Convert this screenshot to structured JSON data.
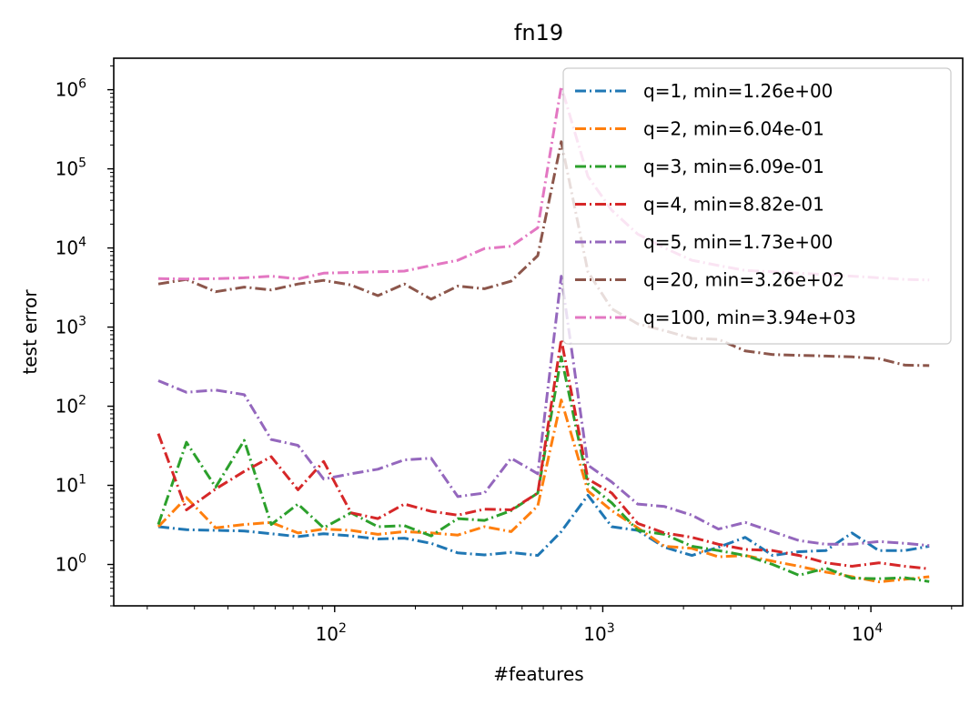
{
  "chart_data": {
    "type": "line",
    "title": "fn19",
    "xlabel": "#features",
    "ylabel": "test error",
    "xscale": "log",
    "yscale": "log",
    "xlim": [
      15,
      22000
    ],
    "ylim": [
      0.3,
      2500000
    ],
    "x_ticks": [
      {
        "value": 100,
        "base": "10",
        "exp": "2"
      },
      {
        "value": 1000,
        "base": "10",
        "exp": "3"
      },
      {
        "value": 10000,
        "base": "10",
        "exp": "4"
      }
    ],
    "y_ticks": [
      {
        "value": 1,
        "base": "10",
        "exp": "0"
      },
      {
        "value": 10,
        "base": "10",
        "exp": "1"
      },
      {
        "value": 100,
        "base": "10",
        "exp": "2"
      },
      {
        "value": 1000,
        "base": "10",
        "exp": "3"
      },
      {
        "value": 10000,
        "base": "10",
        "exp": "4"
      },
      {
        "value": 100000,
        "base": "10",
        "exp": "5"
      },
      {
        "value": 1000000,
        "base": "10",
        "exp": "6"
      }
    ],
    "grid": false,
    "legend_position": "top-right",
    "line_style": "dash-dot",
    "x": [
      22,
      28,
      36,
      46,
      58,
      73,
      91,
      115,
      145,
      182,
      229,
      288,
      362,
      455,
      572,
      700,
      880,
      1080,
      1350,
      1700,
      2150,
      2700,
      3400,
      4300,
      5400,
      6800,
      8500,
      10700,
      13400,
      16500
    ],
    "series": [
      {
        "name": "q=1, min=1.26e+00",
        "color": "#1f77b4",
        "values": [
          3.0,
          2.75,
          2.7,
          2.65,
          2.45,
          2.25,
          2.45,
          2.3,
          2.1,
          2.15,
          1.85,
          1.4,
          1.32,
          1.42,
          1.3,
          2.6,
          7.5,
          3.0,
          2.7,
          1.65,
          1.3,
          1.65,
          2.2,
          1.3,
          1.45,
          1.5,
          2.5,
          1.5,
          1.5,
          1.7
        ]
      },
      {
        "name": "q=2, min=6.04e-01",
        "color": "#ff7f0e",
        "values": [
          3.0,
          7.0,
          2.9,
          3.2,
          3.4,
          2.5,
          2.8,
          2.7,
          2.4,
          2.6,
          2.5,
          2.35,
          3.0,
          2.6,
          5.5,
          120,
          8.5,
          4.8,
          2.9,
          1.7,
          1.6,
          1.25,
          1.3,
          1.1,
          0.95,
          0.8,
          0.7,
          0.604,
          0.65,
          0.7
        ]
      },
      {
        "name": "q=3, min=6.09e-01",
        "color": "#2ca02c",
        "values": [
          3.2,
          35,
          9.5,
          37,
          3.2,
          5.8,
          2.9,
          4.5,
          3.0,
          3.1,
          2.3,
          3.8,
          3.6,
          4.8,
          8.0,
          420,
          10.5,
          6.0,
          2.7,
          2.4,
          1.7,
          1.5,
          1.3,
          1.0,
          0.73,
          0.9,
          0.67,
          0.66,
          0.68,
          0.609
        ]
      },
      {
        "name": "q=4, min=8.82e-01",
        "color": "#d62728",
        "values": [
          45,
          4.9,
          9.0,
          15,
          23,
          8.8,
          20,
          4.5,
          3.8,
          5.8,
          4.7,
          4.2,
          5.0,
          4.9,
          8.0,
          700,
          12,
          8.0,
          3.3,
          2.5,
          2.2,
          1.8,
          1.55,
          1.5,
          1.3,
          1.05,
          0.95,
          1.05,
          0.95,
          0.882
        ]
      },
      {
        "name": "q=5, min=1.73e+00",
        "color": "#9467bd",
        "values": [
          210,
          150,
          160,
          140,
          38,
          32,
          12,
          14,
          16,
          21,
          22,
          7.2,
          8.0,
          22,
          14,
          4400,
          18,
          11,
          5.8,
          5.4,
          4.2,
          2.8,
          3.4,
          2.6,
          2.0,
          1.8,
          1.8,
          1.95,
          1.85,
          1.73
        ]
      },
      {
        "name": "q=20, min=3.26e+02",
        "color": "#8c564b",
        "values": [
          3500,
          4000,
          2800,
          3200,
          2950,
          3500,
          3900,
          3400,
          2500,
          3500,
          2250,
          3300,
          3050,
          3800,
          8000,
          220000,
          5000,
          1700,
          1100,
          900,
          720,
          700,
          500,
          450,
          440,
          430,
          420,
          400,
          330,
          326
        ]
      },
      {
        "name": "q=100, min=3.94e+03",
        "color": "#e377c2",
        "values": [
          4100,
          4050,
          4100,
          4200,
          4400,
          4050,
          4800,
          4900,
          5000,
          5100,
          6000,
          7000,
          9800,
          10500,
          18000,
          1100000,
          80000,
          30000,
          15000,
          10000,
          7000,
          6000,
          5200,
          5000,
          4800,
          4600,
          4400,
          4200,
          4000,
          3940
        ]
      }
    ]
  }
}
